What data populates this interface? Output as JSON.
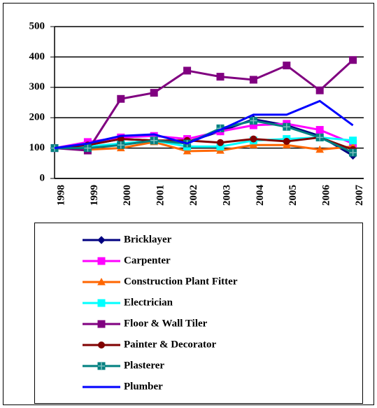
{
  "chart_data": {
    "type": "line",
    "categories": [
      "1998",
      "1999",
      "2000",
      "2001",
      "2002",
      "2003",
      "2004",
      "2005",
      "2006",
      "2007"
    ],
    "ylim": [
      0,
      500
    ],
    "yticks": [
      0,
      100,
      200,
      300,
      400,
      500
    ],
    "grid": true,
    "legend": "bottom",
    "series": [
      {
        "name": "Bricklayer",
        "color": "#000080",
        "marker": "diamond",
        "values": [
          100,
          110,
          130,
          125,
          120,
          155,
          195,
          175,
          140,
          75
        ]
      },
      {
        "name": "Carpenter",
        "color": "#ff00ff",
        "marker": "square",
        "values": [
          100,
          120,
          135,
          140,
          130,
          155,
          175,
          180,
          160,
          115
        ]
      },
      {
        "name": "Construction Plant Fitter",
        "color": "#ff6600",
        "marker": "triangle",
        "values": [
          100,
          95,
          100,
          120,
          90,
          92,
          110,
          110,
          95,
          105
        ]
      },
      {
        "name": "Electrician",
        "color": "#00ffff",
        "marker": "square",
        "values": [
          100,
          105,
          115,
          125,
          105,
          105,
          125,
          130,
          135,
          125
        ]
      },
      {
        "name": "Floor & Wall Tiler",
        "color": "#800080",
        "marker": "square",
        "values": [
          100,
          92,
          262,
          282,
          355,
          335,
          325,
          372,
          290,
          390
        ]
      },
      {
        "name": "Painter & Decorator",
        "color": "#800000",
        "marker": "circle",
        "values": [
          100,
          110,
          130,
          125,
          125,
          118,
          130,
          122,
          135,
          95
        ]
      },
      {
        "name": "Plasterer",
        "color": "#008080",
        "marker": "plus-square",
        "values": [
          100,
          100,
          110,
          125,
          115,
          165,
          190,
          170,
          135,
          85
        ]
      },
      {
        "name": "Plumber",
        "color": "#0000ff",
        "marker": "none",
        "values": [
          100,
          115,
          140,
          145,
          115,
          160,
          210,
          210,
          255,
          175
        ]
      }
    ]
  }
}
